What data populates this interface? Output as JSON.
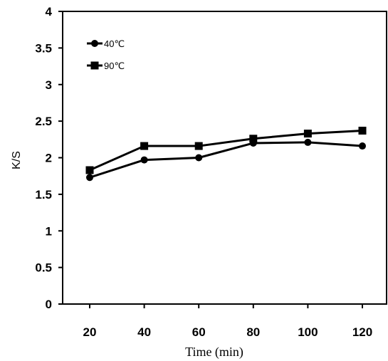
{
  "chart_data": {
    "type": "line",
    "x": [
      20,
      40,
      60,
      80,
      100,
      120
    ],
    "xticks": [
      "20",
      "40",
      "60",
      "80",
      "100",
      "120"
    ],
    "yticks": [
      "0",
      "0.5",
      "1",
      "1.5",
      "2",
      "2.5",
      "3",
      "3.5",
      "4"
    ],
    "ylim": [
      0,
      4
    ],
    "xlabel": "Time (min)",
    "ylabel": "K/S",
    "grid": false,
    "legend_position": "top-left",
    "series": [
      {
        "name": "40℃",
        "marker": "circle",
        "color": "#000000",
        "values": [
          1.73,
          1.97,
          2.0,
          2.2,
          2.21,
          2.16
        ]
      },
      {
        "name": "90℃",
        "marker": "square",
        "color": "#000000",
        "values": [
          1.83,
          2.16,
          2.16,
          2.26,
          2.33,
          2.37
        ]
      }
    ]
  }
}
